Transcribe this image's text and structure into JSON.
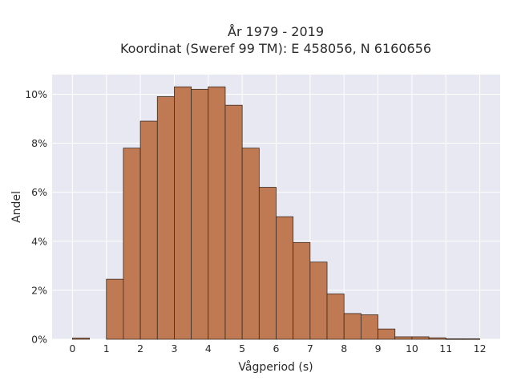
{
  "chart_data": {
    "type": "bar",
    "title_line1": "År 1979 - 2019",
    "title_line2": "Koordinat (Sweref 99 TM): E 458056, N 6160656",
    "xlabel": "Vågperiod (s)",
    "ylabel": "Andel",
    "xlim": [
      -0.6,
      12.6
    ],
    "ylim": [
      0,
      10.8
    ],
    "x_ticks": [
      0,
      1,
      2,
      3,
      4,
      5,
      6,
      7,
      8,
      9,
      10,
      11,
      12
    ],
    "y_ticks": [
      0,
      2,
      4,
      6,
      8,
      10
    ],
    "y_tick_labels": [
      "0%",
      "2%",
      "4%",
      "6%",
      "8%",
      "10%"
    ],
    "grid": true,
    "bar_color": "#c07a53",
    "edge_color": "#3a2a20",
    "background_color": "#e8e8f2",
    "bars": [
      {
        "x0": -0.0,
        "x1": 0.5,
        "value": 0.05
      },
      {
        "x0": 1.0,
        "x1": 1.5,
        "value": 2.45
      },
      {
        "x0": 1.5,
        "x1": 2.0,
        "value": 7.8
      },
      {
        "x0": 2.0,
        "x1": 2.5,
        "value": 8.9
      },
      {
        "x0": 2.5,
        "x1": 3.0,
        "value": 9.9
      },
      {
        "x0": 3.0,
        "x1": 3.5,
        "value": 10.3
      },
      {
        "x0": 3.5,
        "x1": 4.0,
        "value": 10.2
      },
      {
        "x0": 4.0,
        "x1": 4.5,
        "value": 10.3
      },
      {
        "x0": 4.5,
        "x1": 5.0,
        "value": 9.55
      },
      {
        "x0": 5.0,
        "x1": 5.5,
        "value": 7.8
      },
      {
        "x0": 5.5,
        "x1": 6.0,
        "value": 6.2
      },
      {
        "x0": 6.0,
        "x1": 6.5,
        "value": 5.0
      },
      {
        "x0": 6.5,
        "x1": 7.0,
        "value": 3.95
      },
      {
        "x0": 7.0,
        "x1": 7.5,
        "value": 3.15
      },
      {
        "x0": 7.5,
        "x1": 8.0,
        "value": 1.85
      },
      {
        "x0": 8.0,
        "x1": 8.5,
        "value": 1.05
      },
      {
        "x0": 8.5,
        "x1": 9.0,
        "value": 1.0
      },
      {
        "x0": 9.0,
        "x1": 9.5,
        "value": 0.42
      },
      {
        "x0": 9.5,
        "x1": 10.0,
        "value": 0.1
      },
      {
        "x0": 10.0,
        "x1": 10.5,
        "value": 0.1
      },
      {
        "x0": 10.5,
        "x1": 11.0,
        "value": 0.06
      },
      {
        "x0": 11.0,
        "x1": 11.5,
        "value": 0.02
      },
      {
        "x0": 11.5,
        "x1": 12.0,
        "value": 0.02
      }
    ]
  }
}
